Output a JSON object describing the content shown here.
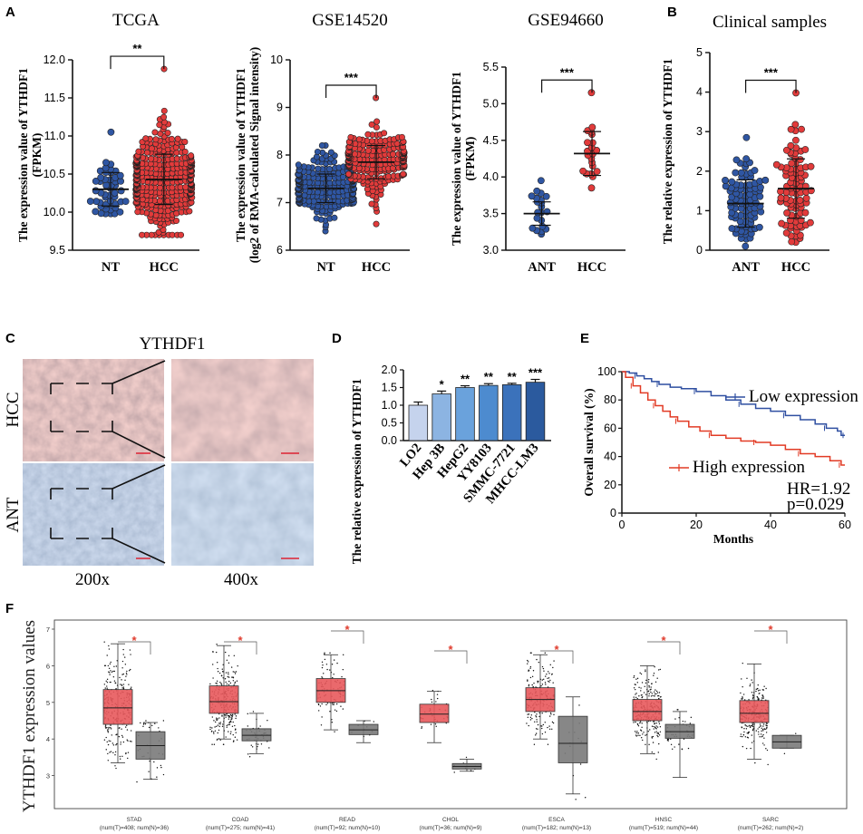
{
  "chart_data": [
    {
      "panel": "A",
      "type": "scatter",
      "title": "TCGA",
      "ylabel": "The expression value of YTHDF1 (FPKM)",
      "ylim": [
        9.5,
        12.0
      ],
      "yticks": [
        "9.5",
        "10.0",
        "10.5",
        "11.0",
        "11.5",
        "12.0"
      ],
      "categories": [
        "NT",
        "HCC"
      ],
      "significance": "**",
      "groups": [
        {
          "name": "NT",
          "color": "#2f56a3",
          "n": 50,
          "mean": 10.3,
          "sd": 0.22,
          "min": 9.98,
          "max": 11.05
        },
        {
          "name": "HCC",
          "color": "#e23b3b",
          "n": 370,
          "mean": 10.43,
          "sd": 0.33,
          "min": 9.7,
          "max": 11.88
        }
      ]
    },
    {
      "panel": "A",
      "type": "scatter",
      "title": "GSE14520",
      "ylabel": "The expression value of YTHDF1 (log2 of RMA-calculated Signal intensity)",
      "ylim": [
        6,
        10
      ],
      "yticks": [
        "6",
        "7",
        "8",
        "9",
        "10"
      ],
      "categories": [
        "NT",
        "HCC"
      ],
      "significance": "***",
      "groups": [
        {
          "name": "NT",
          "color": "#2f56a3",
          "n": 220,
          "mean": 7.3,
          "sd": 0.3,
          "min": 6.4,
          "max": 8.2
        },
        {
          "name": "HCC",
          "color": "#e23b3b",
          "n": 225,
          "mean": 7.85,
          "sd": 0.35,
          "min": 6.55,
          "max": 9.2
        }
      ]
    },
    {
      "panel": "A",
      "type": "scatter",
      "title": "GSE94660",
      "ylabel": "The expression value of YTHDF1 (FPKM)",
      "ylim": [
        3.0,
        5.5
      ],
      "yticks": [
        "3.0",
        "3.5",
        "4.0",
        "4.5",
        "5.0",
        "5.5"
      ],
      "categories": [
        "ANT",
        "HCC"
      ],
      "significance": "***",
      "groups": [
        {
          "name": "ANT",
          "color": "#2f56a3",
          "n": 21,
          "mean": 3.5,
          "sd": 0.16,
          "min": 3.22,
          "max": 3.95
        },
        {
          "name": "HCC",
          "color": "#e23b3b",
          "n": 21,
          "mean": 4.32,
          "sd": 0.3,
          "min": 3.85,
          "max": 5.15
        }
      ]
    },
    {
      "panel": "B",
      "type": "scatter",
      "title": "Clinical samples",
      "ylabel": "The relative expression of YTHDF1",
      "ylim": [
        0,
        5
      ],
      "yticks": [
        "0",
        "1",
        "2",
        "3",
        "4",
        "5"
      ],
      "categories": [
        "ANT",
        "HCC"
      ],
      "significance": "***",
      "groups": [
        {
          "name": "ANT",
          "color": "#2f56a3",
          "n": 90,
          "mean": 1.18,
          "sd": 0.6,
          "min": 0.1,
          "max": 2.85
        },
        {
          "name": "HCC",
          "color": "#e23b3b",
          "n": 90,
          "mean": 1.56,
          "sd": 0.75,
          "min": 0.2,
          "max": 3.98
        }
      ]
    },
    {
      "panel": "D",
      "type": "bar",
      "ylabel": "The relative expression of YTHDF1",
      "ylim": [
        0,
        2.0
      ],
      "yticks": [
        "0.0",
        "0.5",
        "1.0",
        "1.5",
        "2.0"
      ],
      "categories": [
        "LO2",
        "Hep 3B",
        "HepG2",
        "YY8103",
        "SMMC-7721",
        "MHCC-LM3"
      ],
      "values": [
        1.0,
        1.32,
        1.5,
        1.56,
        1.58,
        1.65
      ],
      "errors": [
        0.09,
        0.08,
        0.05,
        0.05,
        0.04,
        0.08
      ],
      "significance": [
        "",
        "*",
        "**",
        "**",
        "**",
        "***"
      ],
      "colors": [
        "#c5d3ed",
        "#8cb4e2",
        "#6aa2dc",
        "#4d8bcf",
        "#3b72bb",
        "#2b5a9e"
      ]
    },
    {
      "panel": "E",
      "type": "line",
      "xlabel": "Months",
      "ylabel": "Overall survival (%)",
      "xlim": [
        0,
        60
      ],
      "ylim": [
        0,
        100
      ],
      "xticks": [
        "0",
        "20",
        "40",
        "60"
      ],
      "yticks": [
        "0",
        "20",
        "40",
        "60",
        "80",
        "100"
      ],
      "series": [
        {
          "name": "Low expression",
          "color": "#2f4fa1",
          "x": [
            0,
            2,
            4,
            6,
            8,
            10,
            13,
            16,
            20,
            24,
            28,
            32,
            36,
            40,
            44,
            48,
            52,
            55,
            58,
            59,
            60
          ],
          "y": [
            100,
            99,
            97,
            95,
            93,
            91,
            89,
            88,
            86,
            83,
            80,
            77,
            74,
            72,
            69,
            66,
            63,
            60,
            58,
            55,
            55
          ]
        },
        {
          "name": "High expression",
          "color": "#e23b25",
          "x": [
            0,
            1,
            3,
            5,
            7,
            9,
            11,
            13,
            15,
            18,
            21,
            24,
            28,
            32,
            36,
            40,
            44,
            48,
            52,
            56,
            59,
            60
          ],
          "y": [
            100,
            96,
            90,
            85,
            80,
            76,
            72,
            68,
            65,
            61,
            58,
            55,
            53,
            51,
            50,
            48,
            45,
            42,
            40,
            37,
            34,
            34
          ]
        }
      ],
      "annotations": [
        "HR=1.92",
        "p=0.029"
      ]
    },
    {
      "panel": "F",
      "type": "box",
      "ylabel": "YTHDF1 expression values",
      "ylim": [
        2,
        7
      ],
      "yticks": [
        "3",
        "4",
        "5",
        "6",
        "7"
      ],
      "categories": [
        "STAD",
        "COAD",
        "READ",
        "CHOL",
        "ESCA",
        "HNSC",
        "SARC"
      ],
      "sublabels": [
        "(num(T)=408; num(N)=36)",
        "(num(T)=275; num(N)=41)",
        "(num(T)=92; num(N)=10)",
        "(num(T)=36; num(N)=9)",
        "(num(T)=182; num(N)=13)",
        "(num(T)=519; num(N)=44)",
        "(num(T)=262; num(N)=2)"
      ],
      "significance": "*",
      "tumor_color": "#e8595c",
      "normal_color": "#7a7a7a",
      "tumor": [
        {
          "q1": 4.4,
          "median": 4.85,
          "q3": 5.35,
          "lo": 3.35,
          "hi": 6.6
        },
        {
          "q1": 4.7,
          "median": 5.02,
          "q3": 5.45,
          "lo": 4.0,
          "hi": 6.55
        },
        {
          "q1": 5.0,
          "median": 5.32,
          "q3": 5.65,
          "lo": 4.25,
          "hi": 6.3
        },
        {
          "q1": 4.45,
          "median": 4.68,
          "q3": 4.95,
          "lo": 3.9,
          "hi": 5.3
        },
        {
          "q1": 4.75,
          "median": 5.08,
          "q3": 5.4,
          "lo": 4.0,
          "hi": 6.3
        },
        {
          "q1": 4.5,
          "median": 4.75,
          "q3": 5.08,
          "lo": 3.6,
          "hi": 6.0
        },
        {
          "q1": 4.45,
          "median": 4.7,
          "q3": 5.05,
          "lo": 3.45,
          "hi": 6.05
        }
      ],
      "normal": [
        {
          "q1": 3.45,
          "median": 3.82,
          "q3": 4.2,
          "lo": 2.9,
          "hi": 4.45
        },
        {
          "q1": 3.95,
          "median": 4.1,
          "q3": 4.28,
          "lo": 3.6,
          "hi": 4.7
        },
        {
          "q1": 4.12,
          "median": 4.25,
          "q3": 4.4,
          "lo": 3.9,
          "hi": 4.5
        },
        {
          "q1": 3.18,
          "median": 3.25,
          "q3": 3.33,
          "lo": 3.12,
          "hi": 3.45
        },
        {
          "q1": 3.35,
          "median": 3.88,
          "q3": 4.62,
          "lo": 2.5,
          "hi": 5.15
        },
        {
          "q1": 4.02,
          "median": 4.2,
          "q3": 4.4,
          "lo": 2.95,
          "hi": 4.75
        },
        {
          "q1": 3.75,
          "median": 3.92,
          "q3": 4.1,
          "lo": 3.75,
          "hi": 4.1
        }
      ]
    }
  ],
  "panel_c": {
    "title": "YTHDF1",
    "rows": [
      "HCC",
      "ANT"
    ],
    "columns": [
      "200x",
      "400x"
    ]
  },
  "panel_labels": [
    "A",
    "B",
    "C",
    "D",
    "E",
    "F"
  ]
}
